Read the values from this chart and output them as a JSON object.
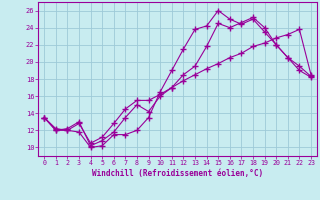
{
  "xlabel": "Windchill (Refroidissement éolien,°C)",
  "bg_color": "#c8ecf0",
  "grid_color": "#9ecad8",
  "line_color": "#990099",
  "xlim": [
    -0.5,
    23.5
  ],
  "ylim": [
    9,
    27
  ],
  "xticks": [
    0,
    1,
    2,
    3,
    4,
    5,
    6,
    7,
    8,
    9,
    10,
    11,
    12,
    13,
    14,
    15,
    16,
    17,
    18,
    19,
    20,
    21,
    22,
    23
  ],
  "yticks": [
    10,
    12,
    14,
    16,
    18,
    20,
    22,
    24,
    26
  ],
  "line1_x": [
    0,
    1,
    2,
    3,
    4,
    5,
    6,
    7,
    8,
    9,
    10,
    11,
    12,
    13,
    14,
    15,
    16,
    17,
    18,
    19,
    20,
    21,
    22,
    23
  ],
  "line1_y": [
    13.5,
    12.2,
    12.0,
    11.8,
    10.0,
    10.2,
    11.5,
    11.5,
    12.0,
    13.5,
    16.5,
    19.0,
    21.5,
    23.8,
    24.2,
    26.0,
    25.0,
    24.4,
    25.0,
    23.5,
    22.0,
    20.5,
    19.5,
    18.3
  ],
  "line2_x": [
    0,
    1,
    2,
    3,
    4,
    5,
    6,
    7,
    8,
    9,
    10,
    11,
    12,
    13,
    14,
    15,
    16,
    17,
    18,
    19,
    20,
    21,
    22,
    23
  ],
  "line2_y": [
    13.5,
    12.0,
    12.2,
    13.0,
    10.2,
    10.8,
    11.8,
    13.5,
    15.0,
    14.2,
    16.0,
    17.0,
    18.5,
    19.5,
    21.8,
    24.5,
    24.0,
    24.6,
    25.2,
    24.0,
    22.0,
    20.5,
    19.0,
    18.2
  ],
  "line3_x": [
    0,
    1,
    2,
    3,
    4,
    5,
    6,
    7,
    8,
    9,
    10,
    11,
    12,
    13,
    14,
    15,
    16,
    17,
    18,
    19,
    20,
    21,
    22,
    23
  ],
  "line3_y": [
    13.5,
    12.0,
    12.0,
    12.8,
    10.5,
    11.2,
    12.8,
    14.5,
    15.5,
    15.5,
    16.2,
    17.0,
    17.8,
    18.5,
    19.2,
    19.8,
    20.5,
    21.0,
    21.8,
    22.2,
    22.8,
    23.2,
    23.8,
    18.5
  ]
}
